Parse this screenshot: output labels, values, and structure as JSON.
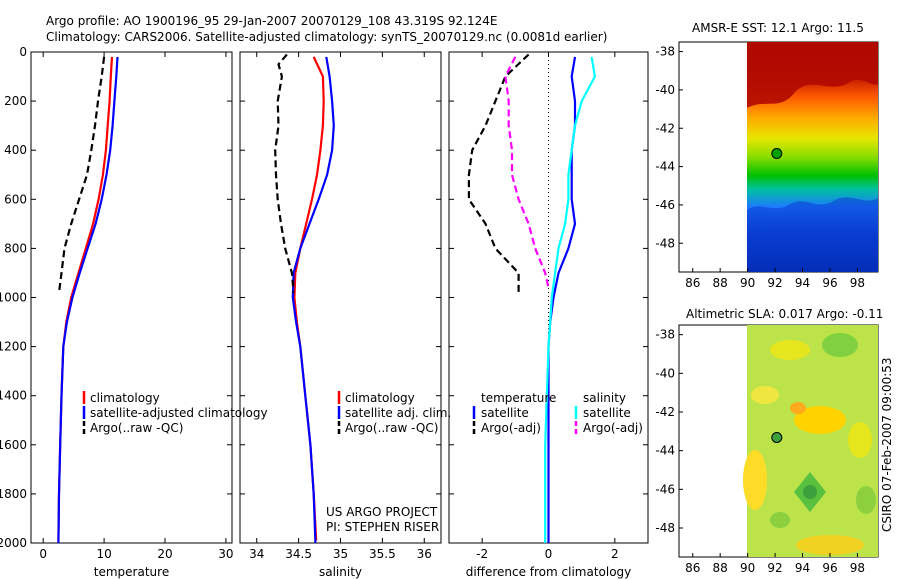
{
  "header": {
    "line1": "Argo profile: AO 1900196_95 29-Jan-2007 20070129_108 43.319S 92.124E",
    "line2": "Climatology: CARS2006. Satellite-adjusted climatology: synTS_20070129.nc (0.0081d earlier)"
  },
  "credit": "CSIRO 07-Feb-2007 09:00:53",
  "project": {
    "line1": "US ARGO PROJECT",
    "line2": "PI: STEPHEN RISER"
  },
  "colors": {
    "climatology": "#ff0000",
    "satellite": "#0000ff",
    "argo": "#000000",
    "satellite_sal": "#00ffff",
    "argo_sal": "#ff00ff",
    "land": "#a00000"
  },
  "chart_data": [
    {
      "type": "line",
      "xlabel": "temperature",
      "xlim": [
        -2,
        31
      ],
      "ylim": [
        2000,
        0
      ],
      "xticks": [
        0,
        10,
        20,
        30
      ],
      "yticks": [
        0,
        200,
        400,
        600,
        800,
        1000,
        1200,
        1400,
        1600,
        1800,
        2000
      ],
      "series": [
        {
          "name": "climatology",
          "color": "#ff0000",
          "dash": "solid",
          "points": [
            [
              11.3,
              20
            ],
            [
              11.1,
              100
            ],
            [
              10.9,
              200
            ],
            [
              10.6,
              300
            ],
            [
              10.3,
              400
            ],
            [
              9.8,
              500
            ],
            [
              9.1,
              600
            ],
            [
              8.2,
              700
            ],
            [
              7.0,
              800
            ],
            [
              5.8,
              900
            ],
            [
              4.6,
              1000
            ],
            [
              3.8,
              1100
            ],
            [
              3.3,
              1200
            ],
            [
              3.0,
              1400
            ],
            [
              2.8,
              1600
            ],
            [
              2.6,
              1800
            ],
            [
              2.5,
              1990
            ]
          ]
        },
        {
          "name": "satellite-adjusted climatology",
          "color": "#0000ff",
          "dash": "solid",
          "points": [
            [
              12.2,
              20
            ],
            [
              12.0,
              100
            ],
            [
              11.7,
              200
            ],
            [
              11.4,
              300
            ],
            [
              11.0,
              400
            ],
            [
              10.4,
              500
            ],
            [
              9.6,
              600
            ],
            [
              8.6,
              700
            ],
            [
              7.3,
              800
            ],
            [
              6.0,
              900
            ],
            [
              4.8,
              1000
            ],
            [
              3.9,
              1100
            ],
            [
              3.3,
              1200
            ],
            [
              3.0,
              1400
            ],
            [
              2.8,
              1600
            ],
            [
              2.6,
              1800
            ],
            [
              2.5,
              2000
            ]
          ]
        },
        {
          "name": "Argo(..raw -QC)",
          "color": "#000000",
          "dash": "dash",
          "points": [
            [
              10.0,
              20
            ],
            [
              9.6,
              100
            ],
            [
              9.0,
              200
            ],
            [
              8.5,
              300
            ],
            [
              7.9,
              400
            ],
            [
              7.2,
              500
            ],
            [
              5.9,
              600
            ],
            [
              4.6,
              700
            ],
            [
              3.5,
              800
            ],
            [
              3.0,
              900
            ],
            [
              2.6,
              980
            ]
          ]
        }
      ],
      "legend": [
        "climatology",
        "satellite-adjusted climatology",
        "Argo(..raw -QC)"
      ]
    },
    {
      "type": "line",
      "xlabel": "salinity",
      "xlim": [
        33.8,
        36.2
      ],
      "ylim": [
        2000,
        0
      ],
      "xticks": [
        34,
        34.5,
        35,
        35.5,
        36
      ],
      "series": [
        {
          "name": "climatology",
          "color": "#ff0000",
          "dash": "solid",
          "points": [
            [
              34.68,
              20
            ],
            [
              34.79,
              100
            ],
            [
              34.8,
              200
            ],
            [
              34.79,
              300
            ],
            [
              34.76,
              400
            ],
            [
              34.72,
              500
            ],
            [
              34.66,
              600
            ],
            [
              34.59,
              700
            ],
            [
              34.52,
              800
            ],
            [
              34.46,
              900
            ],
            [
              34.45,
              1000
            ],
            [
              34.48,
              1100
            ],
            [
              34.52,
              1200
            ],
            [
              34.58,
              1400
            ],
            [
              34.64,
              1600
            ],
            [
              34.68,
              1800
            ],
            [
              34.71,
              1990
            ]
          ]
        },
        {
          "name": "satellite adj. clim.",
          "color": "#0000ff",
          "dash": "solid",
          "points": [
            [
              34.83,
              20
            ],
            [
              34.87,
              100
            ],
            [
              34.9,
              200
            ],
            [
              34.92,
              300
            ],
            [
              34.9,
              400
            ],
            [
              34.84,
              500
            ],
            [
              34.74,
              600
            ],
            [
              34.63,
              700
            ],
            [
              34.52,
              800
            ],
            [
              34.44,
              900
            ],
            [
              34.43,
              1000
            ],
            [
              34.47,
              1100
            ],
            [
              34.52,
              1200
            ],
            [
              34.58,
              1400
            ],
            [
              34.64,
              1600
            ],
            [
              34.68,
              1800
            ],
            [
              34.7,
              2000
            ]
          ]
        },
        {
          "name": "Argo(..raw -QC)",
          "color": "#000000",
          "dash": "dash",
          "points": [
            [
              34.36,
              10
            ],
            [
              34.26,
              50
            ],
            [
              34.3,
              100
            ],
            [
              34.25,
              200
            ],
            [
              34.26,
              300
            ],
            [
              34.22,
              400
            ],
            [
              34.23,
              500
            ],
            [
              34.25,
              600
            ],
            [
              34.29,
              700
            ],
            [
              34.34,
              800
            ],
            [
              34.42,
              900
            ],
            [
              34.44,
              980
            ]
          ]
        }
      ],
      "legend": [
        "climatology",
        "satellite adj. clim.",
        "Argo(..raw -QC)"
      ]
    },
    {
      "type": "line",
      "xlabel": "difference from climatology",
      "xlim": [
        -3,
        3
      ],
      "ylim": [
        2000,
        0
      ],
      "xticks": [
        -2,
        0,
        2
      ],
      "series": [
        {
          "name": "satellite",
          "group": "temperature",
          "color": "#0000ff",
          "dash": "solid",
          "points": [
            [
              0.8,
              20
            ],
            [
              0.7,
              100
            ],
            [
              0.8,
              200
            ],
            [
              0.8,
              300
            ],
            [
              0.7,
              400
            ],
            [
              0.7,
              500
            ],
            [
              0.7,
              600
            ],
            [
              0.8,
              700
            ],
            [
              0.6,
              800
            ],
            [
              0.3,
              900
            ],
            [
              0.15,
              1000
            ],
            [
              0.05,
              1100
            ],
            [
              0.0,
              1200
            ],
            [
              0.0,
              1600
            ],
            [
              0.0,
              2000
            ]
          ]
        },
        {
          "name": "Argo(-adj)",
          "group": "temperature",
          "color": "#000000",
          "dash": "dash",
          "points": [
            [
              -0.6,
              10
            ],
            [
              -1.3,
              100
            ],
            [
              -1.6,
              200
            ],
            [
              -1.9,
              300
            ],
            [
              -2.3,
              400
            ],
            [
              -2.4,
              500
            ],
            [
              -2.4,
              600
            ],
            [
              -1.9,
              700
            ],
            [
              -1.6,
              800
            ],
            [
              -0.9,
              900
            ],
            [
              -0.9,
              980
            ]
          ]
        },
        {
          "name": "satellite",
          "group": "salinity",
          "color": "#00ffff",
          "dash": "solid",
          "points": [
            [
              1.3,
              20
            ],
            [
              1.4,
              100
            ],
            [
              1.0,
              200
            ],
            [
              0.8,
              300
            ],
            [
              0.7,
              400
            ],
            [
              0.6,
              500
            ],
            [
              0.6,
              600
            ],
            [
              0.5,
              700
            ],
            [
              0.3,
              800
            ],
            [
              0.2,
              900
            ],
            [
              0.1,
              1000
            ],
            [
              0.0,
              1200
            ],
            [
              -0.1,
              1600
            ],
            [
              -0.1,
              2000
            ]
          ]
        },
        {
          "name": "Argo(-adj)",
          "group": "salinity",
          "color": "#ff00ff",
          "dash": "dash",
          "points": [
            [
              -1.0,
              20
            ],
            [
              -1.3,
              100
            ],
            [
              -1.2,
              200
            ],
            [
              -1.2,
              300
            ],
            [
              -1.1,
              400
            ],
            [
              -1.1,
              500
            ],
            [
              -0.9,
              600
            ],
            [
              -0.6,
              700
            ],
            [
              -0.4,
              800
            ],
            [
              -0.1,
              900
            ],
            [
              0.0,
              960
            ]
          ]
        }
      ],
      "legend_groups": [
        "temperature",
        "salinity"
      ],
      "legend": [
        "satellite",
        "Argo(-adj)",
        "satellite",
        "Argo(-adj)"
      ]
    },
    {
      "type": "heatmap",
      "title": "AMSR-E SST: 12.1 Argo: 11.5",
      "xlim": [
        85,
        99.5
      ],
      "ylim": [
        -49.5,
        -37.5
      ],
      "xticks": [
        86,
        88,
        90,
        92,
        94,
        96,
        98
      ],
      "yticks": [
        -38,
        -40,
        -42,
        -44,
        -46,
        -48
      ],
      "data_xlim": [
        90,
        99.5
      ],
      "marker": [
        92.124,
        -43.319
      ]
    },
    {
      "type": "heatmap",
      "title": "Altimetric SLA: 0.017 Argo: -0.11",
      "xlim": [
        85,
        99.5
      ],
      "ylim": [
        -49.5,
        -37.5
      ],
      "xticks": [
        86,
        88,
        90,
        92,
        94,
        96,
        98
      ],
      "yticks": [
        -38,
        -40,
        -42,
        -44,
        -46,
        -48
      ],
      "data_xlim": [
        90,
        99.5
      ],
      "marker": [
        92.124,
        -43.319
      ]
    }
  ]
}
